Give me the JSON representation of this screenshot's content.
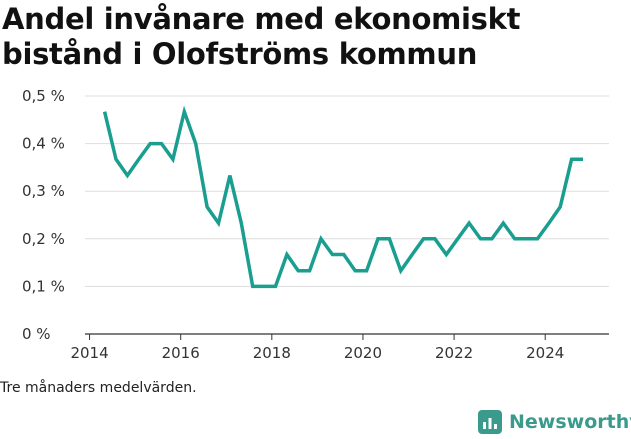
{
  "title": "Andel invånare med ekonomiskt bistånd i Olofströms kommun",
  "caption": "Tre månaders medelvärden.",
  "brand": {
    "name": "Newsworthy",
    "icon": "newsworthy-logo-icon",
    "color": "#3a9a8c"
  },
  "colors": {
    "line": "#1a9e8f",
    "grid": "#dddddd",
    "axis": "#333333"
  },
  "chart_data": {
    "type": "line",
    "title": "Andel invånare med ekonomiskt bistånd i Olofströms kommun",
    "xlabel": "",
    "ylabel": "",
    "xlim": [
      2013.9,
      2025.4
    ],
    "ylim": [
      0,
      0.5
    ],
    "grid": true,
    "y_ticks": [
      0,
      0.1,
      0.2,
      0.3,
      0.4,
      0.5
    ],
    "y_tick_labels": [
      "0 %",
      "0,1 %",
      "0,2 %",
      "0,3 %",
      "0,4 %",
      "0,5 %"
    ],
    "x_ticks": [
      2014,
      2016,
      2018,
      2020,
      2022,
      2024
    ],
    "x_tick_labels": [
      "2014",
      "2016",
      "2018",
      "2020",
      "2022",
      "2024"
    ],
    "series": [
      {
        "color": "#1a9e8f",
        "x": [
          2014.33,
          2014.58,
          2014.83,
          2015.08,
          2015.33,
          2015.58,
          2015.83,
          2016.08,
          2016.33,
          2016.58,
          2016.83,
          2017.08,
          2017.33,
          2017.58,
          2017.83,
          2018.08,
          2018.33,
          2018.58,
          2018.83,
          2019.08,
          2019.33,
          2019.58,
          2019.83,
          2020.08,
          2020.33,
          2020.58,
          2020.83,
          2021.08,
          2021.33,
          2021.58,
          2021.83,
          2022.08,
          2022.33,
          2022.58,
          2022.83,
          2023.08,
          2023.33,
          2023.58,
          2023.83,
          2024.08,
          2024.33,
          2024.58,
          2024.83
        ],
        "y": [
          0.467,
          0.367,
          0.333,
          0.367,
          0.4,
          0.4,
          0.367,
          0.467,
          0.4,
          0.267,
          0.233,
          0.333,
          0.233,
          0.1,
          0.1,
          0.1,
          0.167,
          0.133,
          0.133,
          0.2,
          0.167,
          0.167,
          0.133,
          0.133,
          0.2,
          0.2,
          0.133,
          0.167,
          0.2,
          0.2,
          0.167,
          0.2,
          0.233,
          0.2,
          0.2,
          0.233,
          0.2,
          0.2,
          0.2,
          0.233,
          0.267,
          0.367,
          0.367
        ]
      }
    ]
  }
}
